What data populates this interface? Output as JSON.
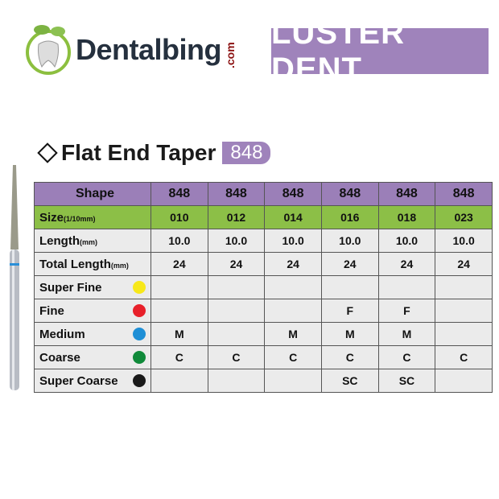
{
  "logos": {
    "left": "Dentalbing",
    "left_suffix": ".com",
    "right": "LUSTER DENT"
  },
  "title": "Flat End Taper",
  "badge": "848",
  "table": {
    "header": {
      "label": "Shape",
      "values": [
        "848",
        "848",
        "848",
        "848",
        "848",
        "848"
      ]
    },
    "size": {
      "label": "Size",
      "unit": "(1/10mm)",
      "values": [
        "010",
        "012",
        "014",
        "016",
        "018",
        "023"
      ]
    },
    "length": {
      "label": "Length",
      "unit": "(mm)",
      "values": [
        "10.0",
        "10.0",
        "10.0",
        "10.0",
        "10.0",
        "10.0"
      ]
    },
    "total": {
      "label": "Total Length",
      "unit": "(mm)",
      "values": [
        "24",
        "24",
        "24",
        "24",
        "24",
        "24"
      ]
    },
    "grits": [
      {
        "label": "Super Fine",
        "color": "#f7e81a",
        "values": [
          "",
          "",
          "",
          "",
          "",
          ""
        ]
      },
      {
        "label": "Fine",
        "color": "#e8202a",
        "values": [
          "",
          "",
          "",
          "F",
          "F",
          ""
        ]
      },
      {
        "label": "Medium",
        "color": "#1e8fd6",
        "values": [
          "M",
          "",
          "M",
          "M",
          "M",
          ""
        ]
      },
      {
        "label": "Coarse",
        "color": "#108a3a",
        "values": [
          "C",
          "C",
          "C",
          "C",
          "C",
          "C"
        ]
      },
      {
        "label": "Super Coarse",
        "color": "#1a1a1a",
        "values": [
          "",
          "",
          "",
          "SC",
          "SC",
          ""
        ]
      }
    ]
  }
}
